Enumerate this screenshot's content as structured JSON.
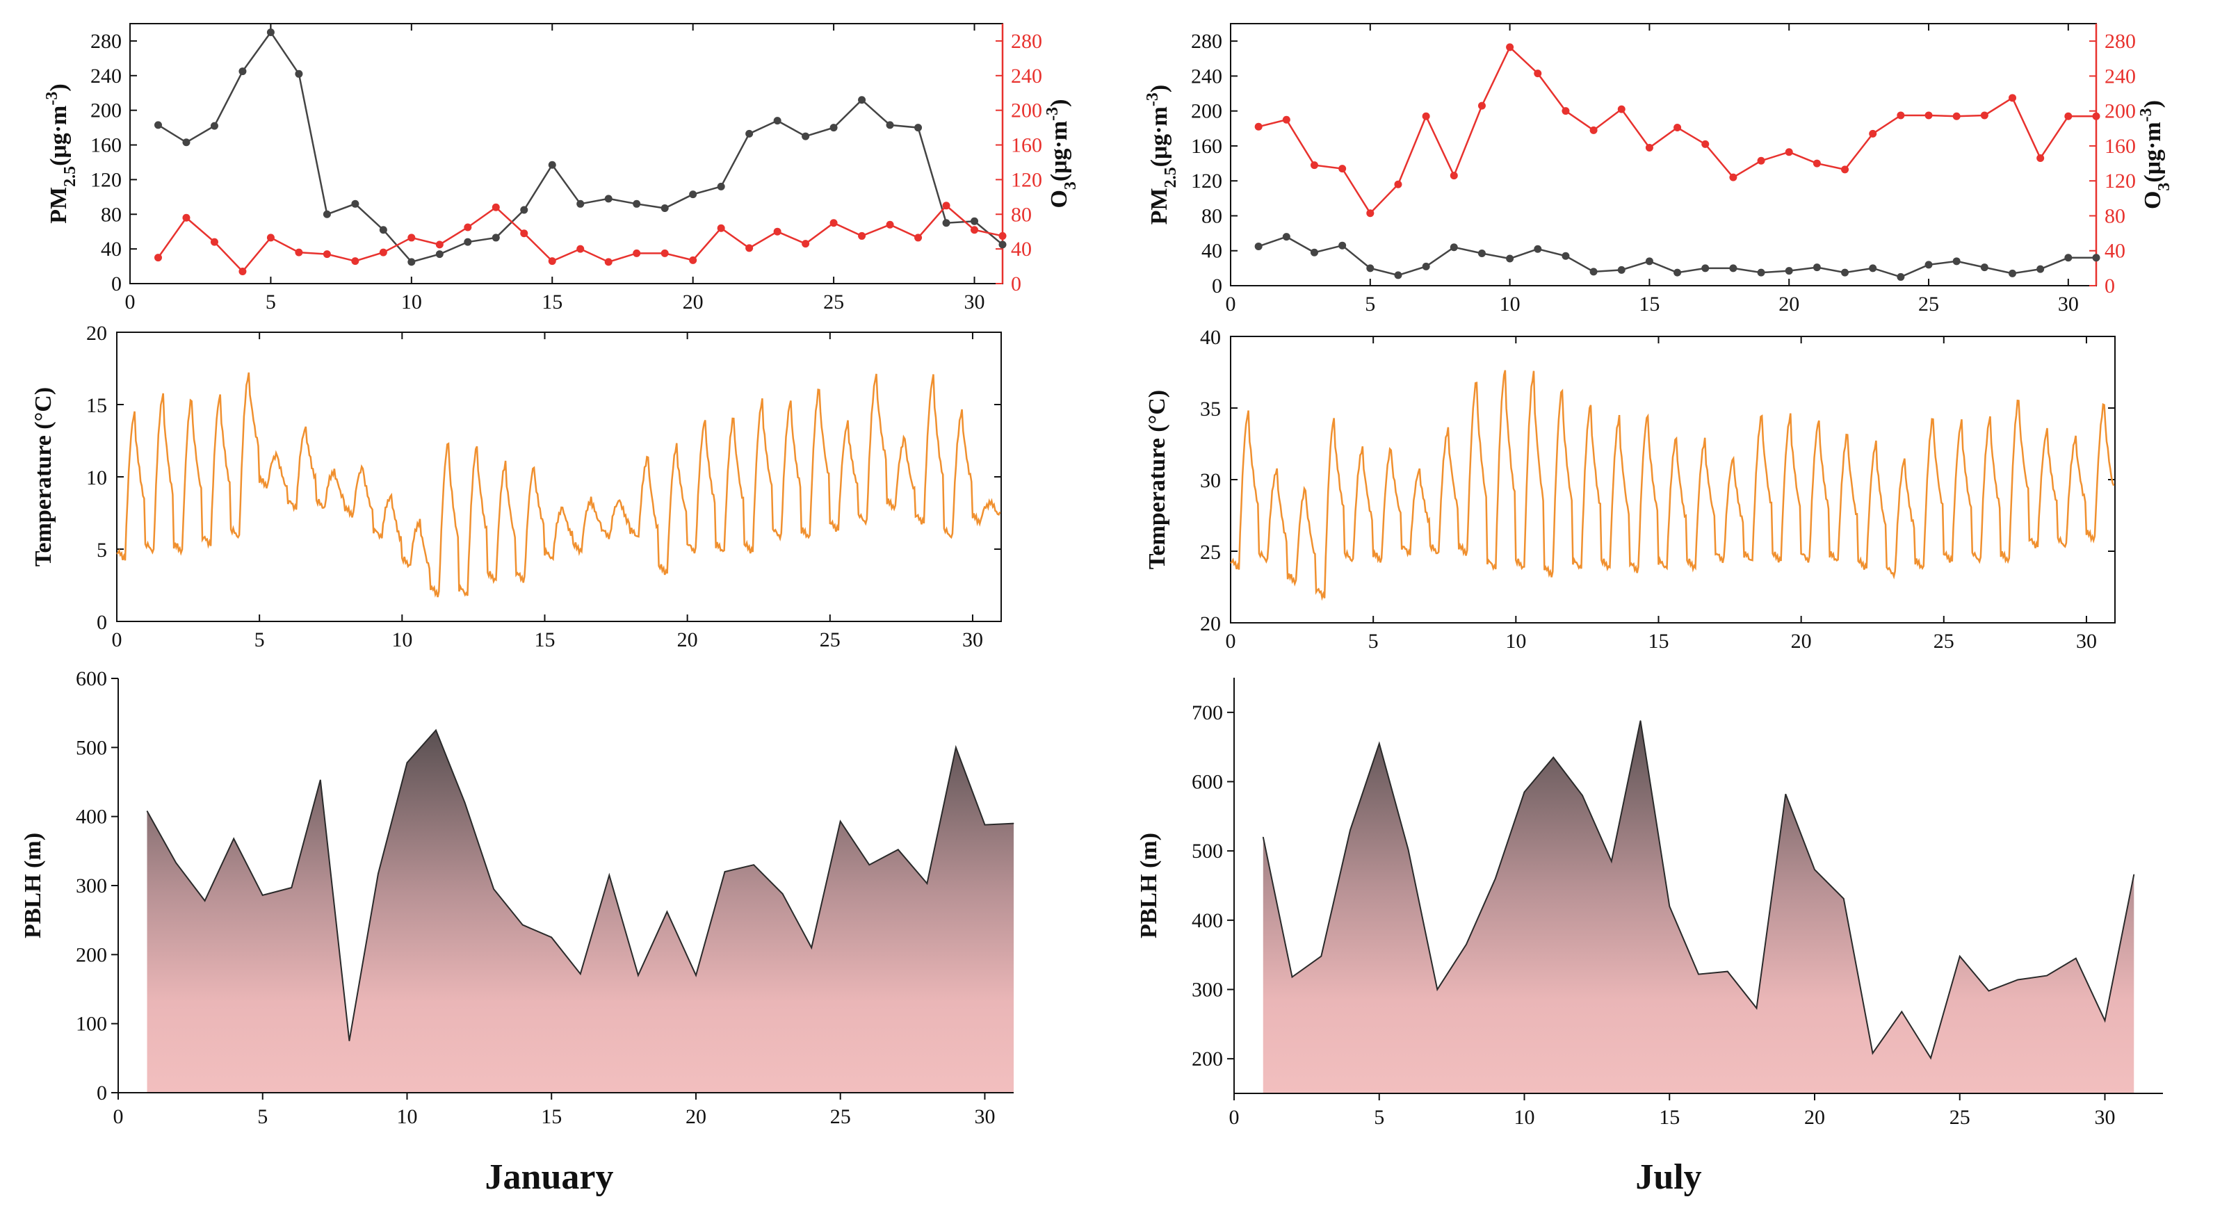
{
  "colors": {
    "pm": "#444444",
    "o3": "#e8322e",
    "temp": "#f0902f",
    "pblh_top": "#5a5052",
    "pblh_bottom": "#f2bfbf",
    "axis": "#111111"
  },
  "months": [
    "January",
    "July"
  ],
  "chart_data": [
    {
      "type": "line",
      "panel": "January pollutants",
      "x": [
        1,
        2,
        3,
        4,
        5,
        6,
        7,
        8,
        9,
        10,
        11,
        12,
        13,
        14,
        15,
        16,
        17,
        18,
        19,
        20,
        21,
        22,
        23,
        24,
        25,
        26,
        27,
        28,
        29,
        30,
        31
      ],
      "xlim": [
        0,
        31
      ],
      "xticks": [
        0,
        5,
        10,
        15,
        20,
        25,
        30
      ],
      "ylim": [
        0,
        300
      ],
      "yticks": [
        0,
        40,
        80,
        120,
        160,
        200,
        240,
        280
      ],
      "y2lim": [
        0,
        300
      ],
      "y2ticks": [
        0,
        40,
        80,
        120,
        160,
        200,
        240,
        280
      ],
      "ylabel": "PM2.5(μg·m-3)",
      "y2label": "O3(μg·m-3)",
      "series": [
        {
          "name": "PM2.5",
          "axis": "left",
          "values": [
            183,
            163,
            182,
            245,
            290,
            242,
            80,
            92,
            62,
            25,
            34,
            48,
            53,
            85,
            137,
            92,
            98,
            92,
            87,
            103,
            112,
            173,
            188,
            170,
            180,
            212,
            183,
            180,
            70,
            72,
            45
          ]
        },
        {
          "name": "O3",
          "axis": "right",
          "values": [
            30,
            76,
            48,
            14,
            53,
            36,
            34,
            26,
            36,
            53,
            45,
            65,
            88,
            58,
            26,
            40,
            25,
            35,
            35,
            27,
            64,
            41,
            60,
            46,
            70,
            55,
            68,
            53,
            90,
            62,
            55
          ]
        }
      ]
    },
    {
      "type": "line",
      "panel": "July pollutants",
      "x": [
        1,
        2,
        3,
        4,
        5,
        6,
        7,
        8,
        9,
        10,
        11,
        12,
        13,
        14,
        15,
        16,
        17,
        18,
        19,
        20,
        21,
        22,
        23,
        24,
        25,
        26,
        27,
        28,
        29,
        30,
        31
      ],
      "xlim": [
        0,
        31
      ],
      "xticks": [
        0,
        5,
        10,
        15,
        20,
        25,
        30
      ],
      "ylim": [
        0,
        300
      ],
      "yticks": [
        0,
        40,
        80,
        120,
        160,
        200,
        240,
        280
      ],
      "y2lim": [
        0,
        300
      ],
      "y2ticks": [
        0,
        40,
        80,
        120,
        160,
        200,
        240,
        280
      ],
      "ylabel": "PM2.5(μg·m-3)",
      "y2label": "O3(μg·m-3)",
      "series": [
        {
          "name": "PM2.5",
          "axis": "left",
          "values": [
            45,
            56,
            38,
            46,
            20,
            12,
            22,
            44,
            37,
            31,
            42,
            34,
            16,
            18,
            28,
            15,
            20,
            20,
            15,
            17,
            21,
            15,
            20,
            10,
            24,
            28,
            21,
            14,
            19,
            32,
            32
          ]
        },
        {
          "name": "O3",
          "axis": "right",
          "values": [
            182,
            190,
            138,
            134,
            83,
            116,
            194,
            126,
            206,
            273,
            243,
            200,
            178,
            202,
            158,
            181,
            162,
            124,
            143,
            153,
            140,
            133,
            174,
            195,
            195,
            194,
            195,
            215,
            146,
            194,
            194
          ]
        }
      ]
    },
    {
      "type": "line",
      "panel": "January temperature",
      "ylabel": "Temperature (°C)",
      "xlim": [
        0,
        31
      ],
      "xticks": [
        0,
        5,
        10,
        15,
        20,
        25,
        30
      ],
      "ylim": [
        0,
        20
      ],
      "yticks": [
        0,
        5,
        10,
        15,
        20
      ],
      "daily_min": [
        4.5,
        5,
        5,
        5.5,
        6,
        9.5,
        8,
        8,
        7.5,
        6,
        4,
        2,
        2,
        3,
        3,
        4.5,
        5,
        6,
        6,
        3.5,
        5,
        5,
        5,
        6,
        6,
        6.5,
        7,
        8,
        7,
        6,
        7
      ],
      "daily_max": [
        14.5,
        15.8,
        15.5,
        15.7,
        17.2,
        11.7,
        13.5,
        10.5,
        10.8,
        8.8,
        7,
        12.5,
        12.2,
        11,
        10.8,
        8,
        8.5,
        8.5,
        11.5,
        12.2,
        14,
        14.2,
        15.3,
        15.3,
        16.2,
        13.8,
        17.1,
        12.8,
        17,
        14.6,
        8.3
      ]
    },
    {
      "type": "line",
      "panel": "July temperature",
      "ylabel": "Temperature (°C)",
      "xlim": [
        0,
        31
      ],
      "xticks": [
        0,
        5,
        10,
        15,
        20,
        25,
        30
      ],
      "ylim": [
        20,
        40
      ],
      "yticks": [
        20,
        25,
        30,
        35,
        40
      ],
      "daily_min": [
        24,
        24.5,
        23,
        22,
        24.5,
        24.5,
        25,
        25,
        25,
        24,
        24,
        23.5,
        24,
        24,
        23.8,
        24,
        24,
        24.5,
        24.5,
        24.5,
        24.5,
        24.5,
        24,
        23.5,
        24,
        24.5,
        24.5,
        24.5,
        25.5,
        25.5,
        26
      ],
      "daily_max": [
        34.8,
        30.8,
        29.5,
        34.3,
        32.3,
        32.3,
        30.8,
        33.6,
        37,
        37.7,
        37.5,
        36.4,
        35.3,
        34.4,
        34.6,
        33,
        32.8,
        31.6,
        34.6,
        34.5,
        34.2,
        33.3,
        32.6,
        31.5,
        34.4,
        34.1,
        34.4,
        35.7,
        33.5,
        33,
        35.4
      ]
    },
    {
      "type": "area",
      "panel": "January PBLH",
      "ylabel": "PBLH (m)",
      "x": [
        1,
        2,
        3,
        4,
        5,
        6,
        7,
        8,
        9,
        10,
        11,
        12,
        13,
        14,
        15,
        16,
        17,
        18,
        19,
        20,
        21,
        22,
        23,
        24,
        25,
        26,
        27,
        28,
        29,
        30,
        31
      ],
      "values": [
        408,
        333,
        278,
        368,
        286,
        297,
        453,
        75,
        317,
        478,
        525,
        420,
        295,
        243,
        225,
        172,
        315,
        170,
        262,
        170,
        320,
        330,
        288,
        210,
        393,
        330,
        352,
        303,
        500,
        388,
        390
      ],
      "xlim": [
        0,
        31
      ],
      "xticks": [
        0,
        5,
        10,
        15,
        20,
        25,
        30
      ],
      "ylim": [
        0,
        600
      ],
      "yticks": [
        0,
        100,
        200,
        300,
        400,
        500,
        600
      ]
    },
    {
      "type": "area",
      "panel": "July PBLH",
      "ylabel": "PBLH (m)",
      "x": [
        1,
        2,
        3,
        4,
        5,
        6,
        7,
        8,
        9,
        10,
        11,
        12,
        13,
        14,
        15,
        16,
        17,
        18,
        19,
        20,
        21,
        22,
        23,
        24,
        25,
        26,
        27,
        28,
        29,
        30,
        31
      ],
      "values": [
        520,
        318,
        348,
        530,
        655,
        502,
        300,
        365,
        460,
        585,
        635,
        580,
        485,
        688,
        420,
        322,
        326,
        273,
        582,
        473,
        431,
        208,
        268,
        201,
        348,
        298,
        314,
        320,
        345,
        255,
        466
      ],
      "xlim": [
        0,
        32
      ],
      "xticks": [
        0,
        5,
        10,
        15,
        20,
        25,
        30
      ],
      "ylim": [
        150,
        750
      ],
      "yticks": [
        200,
        300,
        400,
        500,
        600,
        700
      ]
    }
  ]
}
